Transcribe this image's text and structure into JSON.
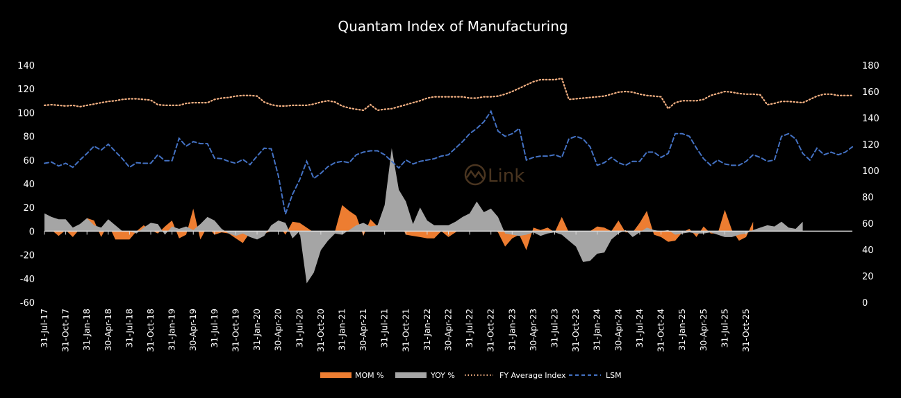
{
  "chart_data": {
    "type": "area",
    "title": "Quantam Index of Manufacturing",
    "xlabel": "",
    "ylabel_left": "",
    "ylabel_right": "",
    "y_left_lim": [
      -60,
      140
    ],
    "y_left_ticks": [
      "140",
      "120",
      "100",
      "80",
      "60",
      "40",
      "20",
      "0",
      "-20",
      "-40",
      "-60"
    ],
    "y_right_lim": [
      0,
      180
    ],
    "y_right_ticks": [
      "180",
      "160",
      "140",
      "120",
      "100",
      "80",
      "60",
      "40",
      "20",
      "0"
    ],
    "x_start": "Jul-17",
    "x_end": "Oct-25",
    "x_tick_labels": [
      "31-Jul-17",
      "31-Oct-17",
      "31-Jan-18",
      "30-Apr-18",
      "31-Jul-18",
      "31-Oct-18",
      "31-Jan-19",
      "30-Apr-19",
      "31-Jul-19",
      "31-Oct-19",
      "31-Jan-20",
      "30-Apr-20",
      "31-Jul-20",
      "31-Oct-20",
      "31-Jan-21",
      "30-Apr-21",
      "31-Jul-21",
      "31-Oct-21",
      "31-Jan-22",
      "30-Apr-22",
      "31-Jul-22",
      "31-Oct-22",
      "31-Jan-23",
      "30-Apr-23",
      "31-Jul-23",
      "31-Oct-23",
      "31-Jan-24",
      "30-Apr-24",
      "31-Jul-24",
      "31-Oct-24",
      "31-Jan-25",
      "30-Apr-25",
      "31-Jul-25",
      "31-Oct-25"
    ],
    "grid": false,
    "legend_position": "bottom",
    "series": [
      {
        "name": "MOM %",
        "type": "area",
        "axis": "left",
        "color": "#ED7D31",
        "values": [
          0,
          1,
          -4,
          1,
          -5,
          2,
          11,
          9,
          -5,
          6,
          -7,
          -7,
          -7,
          0,
          5,
          1,
          -2,
          4,
          9,
          -6,
          -3,
          19,
          -7,
          4,
          -3,
          -1,
          -2,
          -6,
          -10,
          -1,
          -3,
          -2,
          0,
          5,
          -3,
          8,
          7,
          3,
          -1,
          -2,
          -3,
          0,
          22,
          17,
          13,
          -4,
          10,
          4,
          2,
          4,
          9,
          -3,
          -4,
          -5,
          -6,
          -6,
          0,
          -5,
          -1,
          3,
          6,
          4,
          9,
          3,
          -1,
          -13,
          -6,
          -3,
          -16,
          3,
          1,
          3,
          -1,
          12,
          -1,
          -1,
          -2,
          0,
          4,
          3,
          0,
          9,
          -1,
          -1,
          7,
          17,
          -3,
          -5,
          -9,
          -8,
          -1,
          2,
          -5,
          4,
          -2,
          -2,
          18,
          1,
          -8,
          -5,
          8
        ]
      },
      {
        "name": "YOY %",
        "type": "area",
        "axis": "left",
        "color": "#A5A5A5",
        "values": [
          15,
          12,
          10,
          10,
          3,
          6,
          11,
          5,
          3,
          10,
          5,
          0,
          0,
          -2,
          3,
          7,
          6,
          -3,
          4,
          2,
          4,
          1,
          6,
          12,
          9,
          2,
          -2,
          -4,
          -2,
          -5,
          -7,
          -4,
          5,
          9,
          7,
          -6,
          0,
          -44,
          -35,
          -16,
          -8,
          -2,
          -3,
          1,
          5,
          7,
          4,
          5,
          22,
          70,
          35,
          25,
          6,
          20,
          9,
          5,
          5,
          5,
          8,
          12,
          15,
          25,
          16,
          19,
          12,
          -2,
          -3,
          -4,
          -3,
          -1,
          -4,
          -2,
          -1,
          -3,
          -8,
          -13,
          -26,
          -25,
          -19,
          -18,
          -7,
          -2,
          1,
          -5,
          -1,
          3,
          1,
          0,
          1,
          -3,
          -2,
          -1,
          -2,
          -2,
          -1,
          -3,
          -5,
          -5,
          -3,
          -2,
          1,
          3,
          5,
          4,
          8,
          3,
          2,
          8
        ]
      },
      {
        "name": "FY Average Index",
        "type": "line",
        "style": "dotted",
        "axis": "right",
        "color": "#F4B183",
        "values": [
          149.5,
          150,
          149.5,
          149,
          149.5,
          148.5,
          149.5,
          150.5,
          151.5,
          152.5,
          153,
          154,
          154.5,
          154.5,
          154,
          153.5,
          150,
          149.5,
          149.5,
          149.5,
          151,
          151.5,
          151.5,
          151.5,
          154,
          155,
          155.5,
          156.5,
          157,
          157,
          156.5,
          152,
          150,
          149,
          149,
          149.5,
          149.5,
          149.5,
          150.5,
          152,
          153,
          152,
          149,
          147.5,
          146.5,
          145.8,
          150,
          145.8,
          146.5,
          147,
          148.5,
          150,
          151.5,
          153,
          155,
          156,
          156,
          156,
          156,
          156,
          155,
          155,
          156,
          156,
          156.5,
          158,
          160,
          162.5,
          165,
          167.5,
          169,
          169,
          169,
          170,
          154,
          154.5,
          155,
          155.5,
          156,
          156.5,
          158,
          159.5,
          160,
          159.5,
          158,
          157,
          156.5,
          156,
          147,
          151.5,
          153,
          153,
          153,
          154,
          157,
          158.5,
          160,
          159.5,
          158.5,
          158,
          158,
          157.5,
          150,
          151,
          152.5,
          152.5,
          152,
          151.5,
          154,
          156.5,
          158,
          158,
          157,
          157,
          157,
          158,
          157,
          156.5,
          157
        ]
      },
      {
        "name": "LSM",
        "type": "line",
        "style": "dashed",
        "axis": "right",
        "color": "#4472C4",
        "values": [
          105.5,
          106.5,
          103.5,
          105.5,
          102.5,
          108,
          113,
          118.5,
          115.5,
          120,
          114.5,
          109,
          102.5,
          106,
          105.5,
          105.5,
          112,
          107.5,
          107.5,
          124.5,
          118.5,
          122,
          120.5,
          120.5,
          109.5,
          109,
          107,
          105.5,
          108.5,
          104.5,
          111,
          117,
          116.5,
          96,
          67,
          82,
          93,
          107,
          94,
          98,
          103,
          106,
          107,
          106,
          112,
          114,
          115,
          115,
          112,
          107,
          102,
          108,
          105,
          107,
          108,
          109,
          111,
          112,
          117,
          122,
          128,
          132,
          137,
          145,
          130,
          126,
          128,
          132,
          108,
          110,
          111,
          111,
          112,
          110,
          124,
          126,
          124,
          118,
          104,
          106,
          110,
          106,
          104,
          107,
          107,
          114,
          114,
          110,
          113,
          128,
          128,
          126,
          117,
          109,
          104,
          108,
          105,
          104,
          104,
          107,
          112,
          110,
          107,
          108,
          126,
          128,
          124,
          113,
          108,
          117,
          112,
          114,
          112,
          114,
          118
        ]
      }
    ]
  },
  "watermark": {
    "text": "Link",
    "icon": "chart-circle-logo-icon"
  }
}
